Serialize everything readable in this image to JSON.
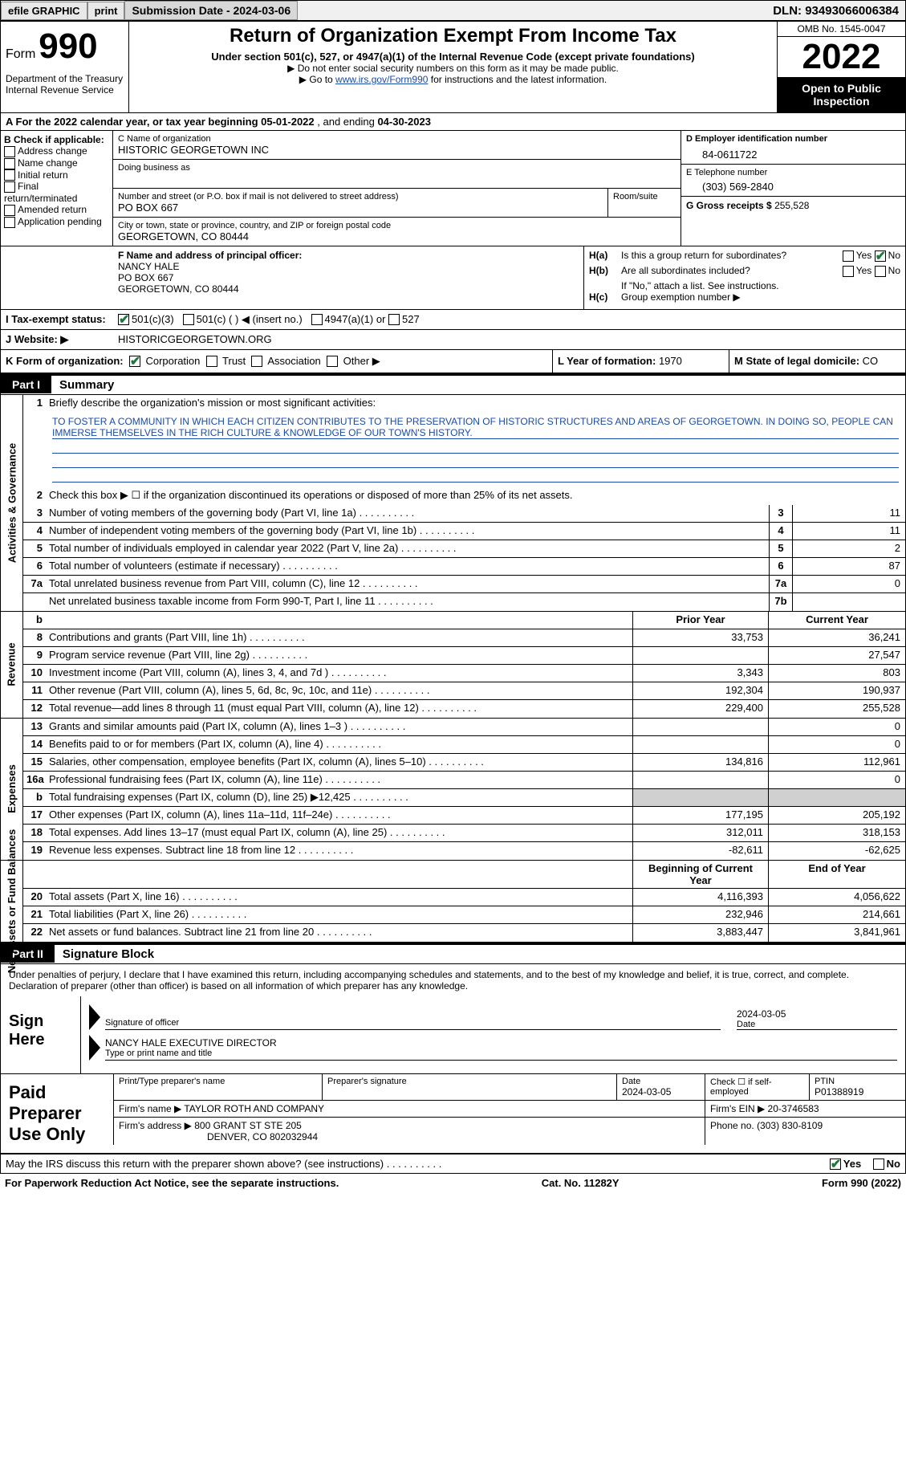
{
  "topbar": {
    "efile": "efile GRAPHIC",
    "print": "print",
    "submission": "Submission Date - 2024-03-06",
    "dln": "DLN: 93493066006384"
  },
  "header": {
    "form_label": "Form",
    "form_num": "990",
    "title": "Return of Organization Exempt From Income Tax",
    "subtitle": "Under section 501(c), 527, or 4947(a)(1) of the Internal Revenue Code (except private foundations)",
    "note1": "▶ Do not enter social security numbers on this form as it may be made public.",
    "note2_pre": "▶ Go to ",
    "note2_link": "www.irs.gov/Form990",
    "note2_post": " for instructions and the latest information.",
    "dept": "Department of the Treasury\nInternal Revenue Service",
    "omb": "OMB No. 1545-0047",
    "year": "2022",
    "open": "Open to Public Inspection"
  },
  "sectionA": {
    "text_pre": "A For the 2022 calendar year, or tax year beginning ",
    "begin": "05-01-2022",
    "mid": "  , and ending ",
    "end": "04-30-2023"
  },
  "sectionB": {
    "label": "B Check if applicable:",
    "addr_change": "Address change",
    "name_change": "Name change",
    "initial": "Initial return",
    "final": "Final return/terminated",
    "amended": "Amended return",
    "app_pending": "Application pending"
  },
  "sectionC": {
    "name_lbl": "C Name of organization",
    "name": "HISTORIC GEORGETOWN INC",
    "dba_lbl": "Doing business as",
    "street_lbl": "Number and street (or P.O. box if mail is not delivered to street address)",
    "street": "PO BOX 667",
    "room_lbl": "Room/suite",
    "city_lbl": "City or town, state or province, country, and ZIP or foreign postal code",
    "city": "GEORGETOWN, CO  80444"
  },
  "sectionD": {
    "ein_lbl": "D Employer identification number",
    "ein": "84-0611722",
    "tel_lbl": "E Telephone number",
    "tel": "(303) 569-2840",
    "gross_lbl": "G Gross receipts $",
    "gross": "255,528"
  },
  "sectionF": {
    "lbl": "F Name and address of principal officer:",
    "name": "NANCY HALE",
    "street": "PO BOX 667",
    "city": "GEORGETOWN, CO  80444"
  },
  "sectionH": {
    "a_lbl": "H(a)",
    "a_txt": "Is this a group return for subordinates?",
    "b_lbl": "H(b)",
    "b_txt": "Are all subordinates included?",
    "b_note": "If \"No,\" attach a list. See instructions.",
    "c_lbl": "H(c)",
    "c_txt": "Group exemption number ▶",
    "yes": "Yes",
    "no": "No"
  },
  "sectionI": {
    "lbl": "I   Tax-exempt status:",
    "c3": "501(c)(3)",
    "cx": "501(c) (  ) ◀ (insert no.)",
    "a1": "4947(a)(1) or",
    "s527": "527"
  },
  "sectionJ": {
    "lbl": "J   Website: ▶",
    "val": "HISTORICGEORGETOWN.ORG"
  },
  "sectionK": {
    "lbl": "K Form of organization:",
    "corp": "Corporation",
    "trust": "Trust",
    "assoc": "Association",
    "other": "Other ▶"
  },
  "sectionL": {
    "lbl": "L Year of formation:",
    "val": "1970"
  },
  "sectionM": {
    "lbl": "M State of legal domicile:",
    "val": "CO"
  },
  "partI": {
    "tag": "Part I",
    "title": "Summary",
    "line1_lbl": "Briefly describe the organization's mission or most significant activities:",
    "mission": "TO FOSTER A COMMUNITY IN WHICH EACH CITIZEN CONTRIBUTES TO THE PRESERVATION OF HISTORIC STRUCTURES AND AREAS OF GEORGETOWN. IN DOING SO, PEOPLE CAN IMMERSE THEMSELVES IN THE RICH CULTURE & KNOWLEDGE OF OUR TOWN'S HISTORY.",
    "line2": "Check this box ▶ ☐ if the organization discontinued its operations or disposed of more than 25% of its net assets.",
    "rows_top": [
      {
        "n": "3",
        "txt": "Number of voting members of the governing body (Part VI, line 1a)",
        "key": "3",
        "val": "11"
      },
      {
        "n": "4",
        "txt": "Number of independent voting members of the governing body (Part VI, line 1b)",
        "key": "4",
        "val": "11"
      },
      {
        "n": "5",
        "txt": "Total number of individuals employed in calendar year 2022 (Part V, line 2a)",
        "key": "5",
        "val": "2"
      },
      {
        "n": "6",
        "txt": "Total number of volunteers (estimate if necessary)",
        "key": "6",
        "val": "87"
      },
      {
        "n": "7a",
        "txt": "Total unrelated business revenue from Part VIII, column (C), line 12",
        "key": "7a",
        "val": "0"
      },
      {
        "n": "",
        "txt": "Net unrelated business taxable income from Form 990-T, Part I, line 11",
        "key": "7b",
        "val": ""
      }
    ],
    "col_prior": "Prior Year",
    "col_curr": "Current Year",
    "col_begin": "Beginning of Current Year",
    "col_end": "End of Year",
    "rot_gov": "Activities & Governance",
    "rot_rev": "Revenue",
    "rot_exp": "Expenses",
    "rot_net": "Net Assets or Fund Balances",
    "revenue": [
      {
        "n": "8",
        "txt": "Contributions and grants (Part VIII, line 1h)",
        "p": "33,753",
        "c": "36,241"
      },
      {
        "n": "9",
        "txt": "Program service revenue (Part VIII, line 2g)",
        "p": "",
        "c": "27,547"
      },
      {
        "n": "10",
        "txt": "Investment income (Part VIII, column (A), lines 3, 4, and 7d )",
        "p": "3,343",
        "c": "803"
      },
      {
        "n": "11",
        "txt": "Other revenue (Part VIII, column (A), lines 5, 6d, 8c, 9c, 10c, and 11e)",
        "p": "192,304",
        "c": "190,937"
      },
      {
        "n": "12",
        "txt": "Total revenue—add lines 8 through 11 (must equal Part VIII, column (A), line 12)",
        "p": "229,400",
        "c": "255,528"
      }
    ],
    "expenses": [
      {
        "n": "13",
        "txt": "Grants and similar amounts paid (Part IX, column (A), lines 1–3 )",
        "p": "",
        "c": "0"
      },
      {
        "n": "14",
        "txt": "Benefits paid to or for members (Part IX, column (A), line 4)",
        "p": "",
        "c": "0"
      },
      {
        "n": "15",
        "txt": "Salaries, other compensation, employee benefits (Part IX, column (A), lines 5–10)",
        "p": "134,816",
        "c": "112,961"
      },
      {
        "n": "16a",
        "txt": "Professional fundraising fees (Part IX, column (A), line 11e)",
        "p": "",
        "c": "0"
      },
      {
        "n": "b",
        "txt": "Total fundraising expenses (Part IX, column (D), line 25) ▶12,425",
        "p": "GRAY",
        "c": "GRAY"
      },
      {
        "n": "17",
        "txt": "Other expenses (Part IX, column (A), lines 11a–11d, 11f–24e)",
        "p": "177,195",
        "c": "205,192"
      },
      {
        "n": "18",
        "txt": "Total expenses. Add lines 13–17 (must equal Part IX, column (A), line 25)",
        "p": "312,011",
        "c": "318,153"
      },
      {
        "n": "19",
        "txt": "Revenue less expenses. Subtract line 18 from line 12",
        "p": "-82,611",
        "c": "-62,625"
      }
    ],
    "netassets": [
      {
        "n": "20",
        "txt": "Total assets (Part X, line 16)",
        "p": "4,116,393",
        "c": "4,056,622"
      },
      {
        "n": "21",
        "txt": "Total liabilities (Part X, line 26)",
        "p": "232,946",
        "c": "214,661"
      },
      {
        "n": "22",
        "txt": "Net assets or fund balances. Subtract line 21 from line 20",
        "p": "3,883,447",
        "c": "3,841,961"
      }
    ]
  },
  "partII": {
    "tag": "Part II",
    "title": "Signature Block",
    "perjury": "Under penalties of perjury, I declare that I have examined this return, including accompanying schedules and statements, and to the best of my knowledge and belief, it is true, correct, and complete. Declaration of preparer (other than officer) is based on all information of which preparer has any knowledge.",
    "sign_here": "Sign Here",
    "sig_officer": "Signature of officer",
    "sig_date": "2024-03-05",
    "date_lbl": "Date",
    "officer_name": "NANCY HALE  EXECUTIVE DIRECTOR",
    "type_name": "Type or print name and title",
    "paid_prep": "Paid Preparer Use Only",
    "prep_name_lbl": "Print/Type preparer's name",
    "prep_sig_lbl": "Preparer's signature",
    "prep_date_lbl": "Date",
    "prep_date": "2024-03-05",
    "self_emp": "Check ☐ if self-employed",
    "ptin_lbl": "PTIN",
    "ptin": "P01388919",
    "firm_name_lbl": "Firm's name    ▶",
    "firm_name": "TAYLOR ROTH AND COMPANY",
    "firm_ein_lbl": "Firm's EIN ▶",
    "firm_ein": "20-3746583",
    "firm_addr_lbl": "Firm's address ▶",
    "firm_addr": "800 GRANT ST STE 205",
    "firm_city": "DENVER, CO  802032944",
    "firm_phone_lbl": "Phone no.",
    "firm_phone": "(303) 830-8109",
    "may_irs": "May the IRS discuss this return with the preparer shown above? (see instructions)",
    "yes": "Yes",
    "no": "No"
  },
  "footer": {
    "pra": "For Paperwork Reduction Act Notice, see the separate instructions.",
    "cat": "Cat. No. 11282Y",
    "form": "Form 990 (2022)"
  }
}
